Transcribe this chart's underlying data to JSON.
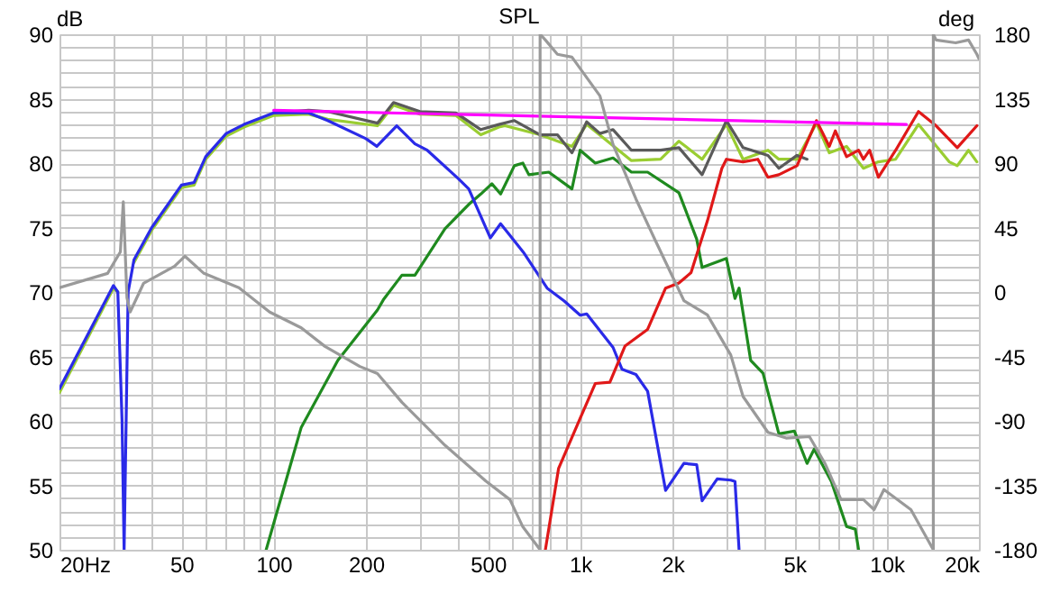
{
  "chart_data": {
    "type": "line",
    "title": "SPL",
    "ylabel": "dB",
    "y2label": "deg",
    "log": "x",
    "grid": true,
    "xlim": [
      20,
      20000
    ],
    "xticks": [
      {
        "value": 20,
        "label": "20Hz"
      },
      {
        "value": 30,
        "label": null
      },
      {
        "value": 40,
        "label": null
      },
      50,
      {
        "value": 60,
        "label": null
      },
      {
        "value": 70,
        "label": null
      },
      {
        "value": 80,
        "label": null
      },
      {
        "value": 90,
        "label": null
      },
      100,
      200,
      {
        "value": 300,
        "label": null
      },
      {
        "value": 400,
        "label": null
      },
      500,
      {
        "value": 600,
        "label": null
      },
      {
        "value": 700,
        "label": null
      },
      {
        "value": 800,
        "label": null
      },
      {
        "value": 900,
        "label": null
      },
      {
        "value": 1000,
        "label": "1k"
      },
      {
        "value": 2000,
        "label": "2k"
      },
      {
        "value": 3000,
        "label": null
      },
      {
        "value": 4000,
        "label": null
      },
      {
        "value": 5000,
        "label": "5k"
      },
      {
        "value": 6000,
        "label": null
      },
      {
        "value": 7000,
        "label": null
      },
      {
        "value": 8000,
        "label": null
      },
      {
        "value": 9000,
        "label": null
      },
      {
        "value": 10000,
        "label": "10k"
      },
      {
        "value": 20000,
        "label": "20k"
      }
    ],
    "ylim": [
      50,
      90
    ],
    "yticks": [
      50,
      {
        "value": 51,
        "label": null
      },
      {
        "value": 52,
        "label": null
      },
      {
        "value": 53,
        "label": null
      },
      {
        "value": 54,
        "label": null
      },
      55,
      {
        "value": 56,
        "label": null
      },
      {
        "value": 57,
        "label": null
      },
      {
        "value": 58,
        "label": null
      },
      {
        "value": 59,
        "label": null
      },
      60,
      {
        "value": 61,
        "label": null
      },
      {
        "value": 62,
        "label": null
      },
      {
        "value": 63,
        "label": null
      },
      {
        "value": 64,
        "label": null
      },
      65,
      {
        "value": 66,
        "label": null
      },
      {
        "value": 67,
        "label": null
      },
      {
        "value": 68,
        "label": null
      },
      {
        "value": 69,
        "label": null
      },
      70,
      {
        "value": 71,
        "label": null
      },
      {
        "value": 72,
        "label": null
      },
      {
        "value": 73,
        "label": null
      },
      {
        "value": 74,
        "label": null
      },
      75,
      {
        "value": 76,
        "label": null
      },
      {
        "value": 77,
        "label": null
      },
      {
        "value": 78,
        "label": null
      },
      {
        "value": 79,
        "label": null
      },
      80,
      {
        "value": 81,
        "label": null
      },
      {
        "value": 82,
        "label": null
      },
      {
        "value": 83,
        "label": null
      },
      {
        "value": 84,
        "label": null
      },
      85,
      {
        "value": 86,
        "label": null
      },
      {
        "value": 87,
        "label": null
      },
      {
        "value": 88,
        "label": null
      },
      {
        "value": 89,
        "label": null
      },
      90
    ],
    "y2lim": [
      -180,
      180
    ],
    "y2ticks": [
      -180,
      -135,
      -90,
      -45,
      0,
      45,
      90,
      135,
      180
    ],
    "series": [
      {
        "color": "#9a9a9a",
        "axis": "y2",
        "x": [
          20,
          28.7,
          31.6,
          32.3,
          33.2,
          34,
          37.6,
          47.5,
          51.3,
          59.2,
          77,
          97,
          123,
          147,
          191,
          218,
          262,
          362,
          492,
          590,
          650,
          740,
          740,
          770,
          843,
          940,
          1160,
          1280,
          1520,
          1750,
          2180,
          2600,
          3100,
          3400,
          4100,
          4700,
          5600,
          6300,
          7100,
          8400,
          9100,
          9800,
          12000,
          14200,
          14200,
          14500,
          16800,
          18500,
          19700,
          20000
        ],
        "values": [
          3,
          13,
          28,
          63,
          -4,
          -14,
          6,
          18,
          25,
          13,
          3,
          -14,
          -25,
          -38,
          -52,
          -57,
          -77,
          -107,
          -132,
          -145,
          -164,
          -180,
          180,
          176,
          166,
          164,
          137,
          103,
          65,
          37,
          -6,
          -16,
          -44,
          -73,
          -98,
          -102,
          -101,
          -120,
          -145,
          -145,
          -152,
          -138,
          -152,
          -180,
          180,
          176,
          174,
          176,
          166,
          163
        ]
      },
      {
        "color": "#1f8a1f",
        "x": [
          94.5,
          123,
          162,
          218,
          228,
          262,
          289,
          362,
          433,
          474,
          515,
          550,
          610,
          650,
          680,
          790,
          940,
          1000,
          1120,
          1280,
          1470,
          1660,
          2100,
          2400,
          2500,
          3000,
          3200,
          3300,
          3600,
          3950,
          4450,
          5000,
          5500,
          5800,
          6600,
          7400,
          7900,
          8100
        ],
        "values": [
          50,
          59.5,
          64.7,
          68.6,
          69.4,
          71.3,
          71.3,
          74.9,
          76.8,
          77.6,
          78.4,
          77.6,
          79.8,
          80,
          79.1,
          79.3,
          78,
          81,
          80,
          80.4,
          79.3,
          79.3,
          77.7,
          74.1,
          71.9,
          72.6,
          69.5,
          70.3,
          64.7,
          63.7,
          59,
          59.2,
          56.7,
          57.8,
          55.3,
          51.8,
          51.6,
          50
        ]
      },
      {
        "color": "#9acd32",
        "x": [
          20,
          30,
          31,
          32,
          32.5,
          33,
          33.5,
          35,
          40,
          50,
          55,
          60,
          70,
          80,
          100,
          130,
          150,
          218,
          246,
          300,
          393,
          474,
          543,
          568,
          740,
          940,
          1050,
          1470,
          1830,
          2100,
          2500,
          3000,
          3400,
          4100,
          4450,
          5100,
          5900,
          6500,
          7400,
          8400,
          9400,
          10700,
          12700,
          16000,
          17000,
          18500,
          19700
        ],
        "values": [
          62.2,
          70.3,
          70,
          null,
          null,
          null,
          null,
          72.3,
          74.8,
          78.1,
          78.3,
          80.3,
          82.1,
          82.8,
          83.7,
          83.8,
          83.4,
          82.9,
          84.5,
          83.8,
          83.7,
          82.2,
          82.8,
          82.9,
          82.2,
          81.3,
          83,
          80.2,
          80.3,
          81.7,
          80.3,
          83,
          80.3,
          81,
          80.3,
          80.3,
          83.1,
          80.8,
          81.3,
          79.6,
          80.1,
          80.3,
          83,
          80.1,
          79.8,
          81,
          80.1
        ]
      },
      {
        "color": "#5a5a5a",
        "x": [
          100,
          130,
          150,
          218,
          246,
          300,
          393,
          474,
          543,
          610,
          740,
          843,
          940,
          1050,
          1160,
          1280,
          1470,
          1830,
          2100,
          2500,
          3000,
          3400,
          4100,
          4450,
          5100,
          5500
        ],
        "values": [
          83.9,
          84.1,
          84,
          83.1,
          84.7,
          84,
          83.9,
          82.6,
          83,
          83.3,
          82.2,
          82.2,
          80.8,
          83.2,
          82.3,
          82.6,
          81,
          81,
          81.2,
          79.1,
          83.3,
          81.2,
          80.6,
          79.6,
          80.6,
          80.3
        ]
      },
      {
        "color": "#2a2ae8",
        "x": [
          20,
          30,
          31,
          32,
          32.5,
          33,
          33.5,
          35,
          40,
          50,
          55,
          60,
          70,
          80,
          100,
          130,
          150,
          200,
          217,
          252,
          289,
          317,
          400,
          433,
          509,
          550,
          652,
          780,
          887,
          1000,
          1050,
          1280,
          1370,
          1520,
          1660,
          1900,
          2180,
          2400,
          2500,
          2800,
          3100,
          3200,
          3300
        ],
        "values": [
          62.5,
          70.5,
          70,
          60,
          50,
          60,
          70,
          72.5,
          75,
          78.3,
          78.5,
          80.5,
          82.3,
          83,
          83.9,
          83.9,
          83.3,
          81.9,
          81.3,
          82.9,
          81.5,
          81,
          78.8,
          78,
          74.2,
          75.3,
          73.1,
          70.3,
          69.3,
          68.2,
          68.3,
          65.7,
          64,
          63.6,
          62.3,
          54.6,
          56.7,
          56.6,
          53.8,
          55.5,
          55.4,
          55.3,
          50
        ]
      },
      {
        "color": "#e01818",
        "x": [
          770,
          850,
          1000,
          1120,
          1250,
          1400,
          1660,
          1900,
          2100,
          2300,
          2600,
          2900,
          3000,
          3400,
          3800,
          4100,
          4450,
          5100,
          5900,
          6500,
          6800,
          7400,
          8100,
          8400,
          8800,
          9400,
          10700,
          12700,
          14500,
          17000,
          19700
        ],
        "values": [
          50,
          56.3,
          60.2,
          62.9,
          63,
          65.8,
          67.1,
          70.3,
          70.7,
          71.5,
          75.5,
          79.6,
          80.3,
          80.1,
          80.3,
          78.9,
          79.1,
          79.8,
          83.3,
          81.3,
          82.5,
          80.5,
          81,
          80.3,
          81,
          78.9,
          81,
          84,
          82.9,
          81.2,
          82.9
        ]
      },
      {
        "color": "#ff00ff",
        "x": [
          100,
          11600
        ],
        "values": [
          84.1,
          83.0
        ]
      }
    ]
  }
}
